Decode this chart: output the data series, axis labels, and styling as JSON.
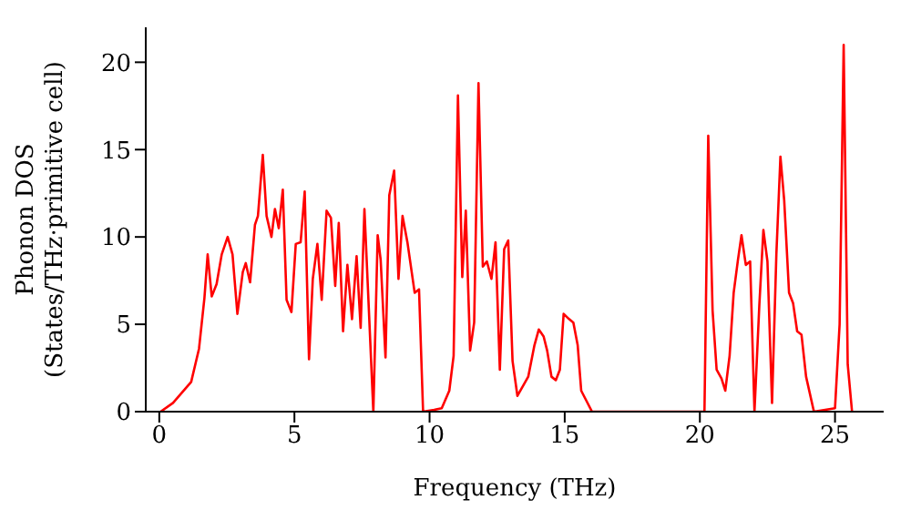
{
  "chart_data": {
    "type": "line",
    "xlabel": "Frequency (THz)",
    "ylabel": "Phonon DOS\n(States/THz·primitive cell)",
    "xlim": [
      -0.5,
      26.8
    ],
    "ylim": [
      0,
      22
    ],
    "xticks": [
      0,
      5,
      10,
      15,
      20,
      25
    ],
    "yticks": [
      0,
      5,
      10,
      15,
      20
    ],
    "grid": false,
    "legend": false,
    "marker": "none",
    "line_style": "solid",
    "series": [
      {
        "color": "#ff0000",
        "x": [
          0.05,
          0.51,
          1.18,
          1.47,
          1.67,
          1.79,
          1.94,
          2.12,
          2.31,
          2.53,
          2.71,
          2.89,
          3.09,
          3.2,
          3.36,
          3.54,
          3.65,
          3.83,
          3.97,
          4.15,
          4.28,
          4.42,
          4.57,
          4.71,
          4.89,
          5.05,
          5.23,
          5.38,
          5.54,
          5.68,
          5.85,
          6.01,
          6.19,
          6.35,
          6.51,
          6.64,
          6.8,
          6.96,
          7.13,
          7.3,
          7.45,
          7.59,
          7.92,
          8.08,
          8.19,
          8.37,
          8.51,
          8.69,
          8.85,
          9.0,
          9.18,
          9.45,
          9.61,
          9.76,
          10.17,
          10.45,
          10.73,
          10.89,
          11.05,
          11.21,
          11.34,
          11.5,
          11.65,
          11.81,
          11.97,
          12.12,
          12.29,
          12.44,
          12.6,
          12.76,
          12.91,
          13.07,
          13.25,
          13.65,
          13.88,
          14.04,
          14.22,
          14.35,
          14.51,
          14.67,
          14.82,
          14.96,
          15.16,
          15.32,
          15.48,
          15.61,
          16.01,
          20.17,
          20.31,
          20.47,
          20.62,
          20.8,
          20.94,
          21.1,
          21.25,
          21.41,
          21.54,
          21.7,
          21.86,
          22.02,
          22.2,
          22.35,
          22.5,
          22.67,
          22.83,
          22.98,
          23.12,
          23.3,
          23.45,
          23.6,
          23.76,
          23.93,
          24.22,
          25.0,
          25.17,
          25.32,
          25.47,
          25.63
        ],
        "values": [
          0,
          0.5,
          1.7,
          3.6,
          6.5,
          9.0,
          6.6,
          7.3,
          9.0,
          10.0,
          9.0,
          5.6,
          8.0,
          8.5,
          7.4,
          10.7,
          11.2,
          14.7,
          11.2,
          10.0,
          11.6,
          10.5,
          12.7,
          6.4,
          5.7,
          9.6,
          9.7,
          12.6,
          3.0,
          7.6,
          9.6,
          6.4,
          11.5,
          11.1,
          7.2,
          10.8,
          4.6,
          8.4,
          5.3,
          8.9,
          4.8,
          11.6,
          0,
          10.1,
          8.7,
          3.1,
          12.4,
          13.8,
          7.6,
          11.2,
          9.7,
          6.8,
          7.0,
          0,
          0.1,
          0.2,
          1.2,
          3.2,
          18.1,
          7.7,
          11.5,
          3.5,
          5.1,
          18.8,
          8.3,
          8.6,
          7.6,
          9.7,
          2.4,
          9.3,
          9.8,
          2.9,
          0.9,
          2.0,
          3.8,
          4.7,
          4.3,
          3.5,
          2.0,
          1.8,
          2.4,
          5.6,
          5.3,
          5.1,
          3.8,
          1.2,
          0,
          0,
          15.8,
          5.8,
          2.4,
          1.9,
          1.2,
          3.2,
          6.8,
          8.7,
          10.1,
          8.4,
          8.6,
          0,
          6.1,
          10.4,
          8.6,
          0.5,
          9.0,
          14.6,
          12.1,
          6.8,
          6.2,
          4.6,
          4.4,
          2.0,
          0,
          0.2,
          5,
          21.0,
          2.7,
          0
        ]
      }
    ]
  }
}
